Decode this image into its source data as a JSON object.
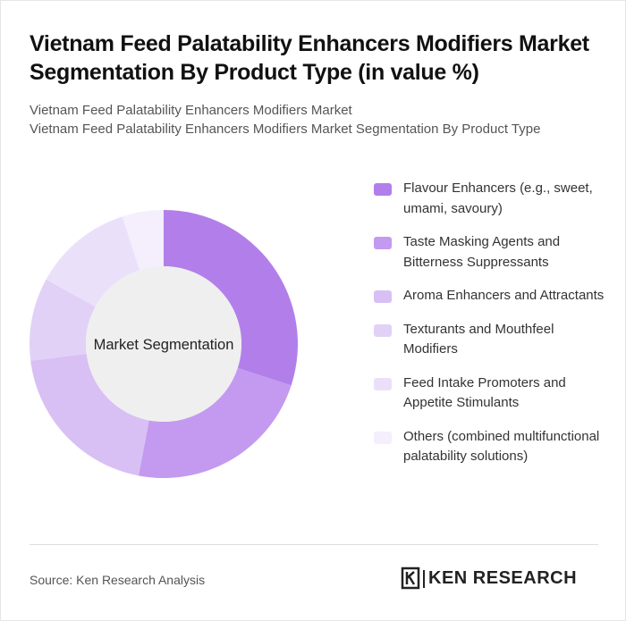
{
  "header": {
    "title": "Vietnam Feed Palatability Enhancers Modifiers Market Segmentation By Product Type (in value %)",
    "subtitle_line1": "Vietnam Feed Palatability Enhancers Modifiers Market",
    "subtitle_line2": "Vietnam Feed Palatability Enhancers Modifiers Market Segmentation By Product Type"
  },
  "chart_data": {
    "type": "pie",
    "variant": "donut",
    "center_label": "Market Segmentation",
    "categories": [
      "Flavour Enhancers (e.g., sweet, umami, savoury)",
      "Taste Masking Agents and Bitterness Suppressants",
      "Aroma Enhancers and Attractants",
      "Texturants and Mouthfeel Modifiers",
      "Feed Intake Promoters and Appetite Stimulants",
      "Others (combined multifunctional palatability solutions)"
    ],
    "values": [
      30,
      23,
      20,
      10,
      12,
      5
    ],
    "colors": [
      "#b27fea",
      "#c39af0",
      "#d8c0f5",
      "#e2d1f7",
      "#ebe0fa",
      "#f4eefd"
    ],
    "legend_position": "right"
  },
  "footer": {
    "source": "Source: Ken Research Analysis",
    "brand": "KEN RESEARCH",
    "brand_icon": "ken-research-logo-icon"
  }
}
